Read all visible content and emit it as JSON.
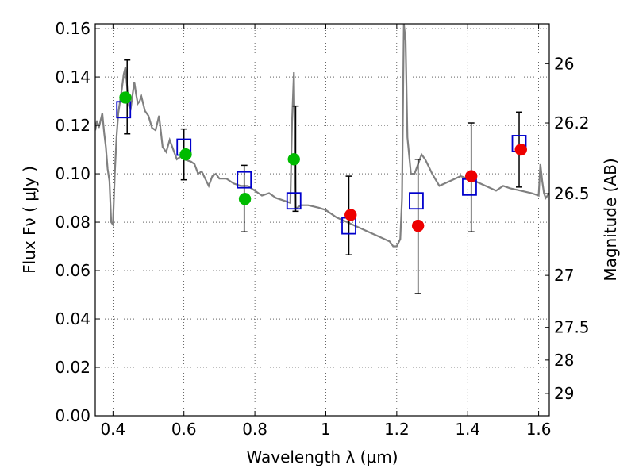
{
  "chart_data": {
    "type": "scatter",
    "title": "",
    "xlabel": "Wavelength  λ (μm)",
    "ylabel": "Flux  Fν  ( μJy )",
    "y2label": "Magnitude (AB)",
    "xlim": [
      0.35,
      1.63
    ],
    "ylim": [
      0.0,
      0.162
    ],
    "grid": true,
    "grid_style": "dotted",
    "x_ticks": [
      0.4,
      0.6,
      0.8,
      1.0,
      1.2,
      1.4,
      1.6
    ],
    "x_tick_labels": [
      "0.4",
      "0.6",
      "0.8",
      "1",
      "1.2",
      "1.4",
      "1.6"
    ],
    "y_ticks": [
      0.0,
      0.02,
      0.04,
      0.06,
      0.08,
      0.1,
      0.12,
      0.14,
      0.16
    ],
    "y_tick_labels": [
      "0.00",
      "0.02",
      "0.04",
      "0.06",
      "0.08",
      "0.10",
      "0.12",
      "0.14",
      "0.16"
    ],
    "y2_ticks": [
      {
        "label": "26",
        "flux": 0.1455
      },
      {
        "label": "26.2",
        "flux": 0.121
      },
      {
        "label": "26.5",
        "flux": 0.0918
      },
      {
        "label": "27",
        "flux": 0.058
      },
      {
        "label": "27.5",
        "flux": 0.0365
      },
      {
        "label": "28",
        "flux": 0.023
      },
      {
        "label": "29",
        "flux": 0.0092
      }
    ],
    "series": [
      {
        "kind": "line",
        "color": "#808080",
        "x": [
          0.35,
          0.355,
          0.36,
          0.37,
          0.375,
          0.38,
          0.385,
          0.39,
          0.395,
          0.4,
          0.405,
          0.41,
          0.415,
          0.42,
          0.425,
          0.43,
          0.435,
          0.44,
          0.445,
          0.45,
          0.46,
          0.465,
          0.47,
          0.475,
          0.48,
          0.49,
          0.5,
          0.51,
          0.52,
          0.53,
          0.54,
          0.55,
          0.56,
          0.57,
          0.58,
          0.59,
          0.6,
          0.62,
          0.63,
          0.64,
          0.65,
          0.66,
          0.67,
          0.68,
          0.69,
          0.7,
          0.72,
          0.74,
          0.76,
          0.78,
          0.8,
          0.82,
          0.84,
          0.86,
          0.88,
          0.9,
          0.905,
          0.91,
          0.915,
          0.92,
          0.93,
          0.95,
          0.98,
          1.0,
          1.03,
          1.06,
          1.09,
          1.12,
          1.15,
          1.18,
          1.19,
          1.2,
          1.21,
          1.215,
          1.22,
          1.225,
          1.23,
          1.24,
          1.25,
          1.26,
          1.27,
          1.28,
          1.29,
          1.3,
          1.32,
          1.35,
          1.38,
          1.4,
          1.42,
          1.45,
          1.48,
          1.5,
          1.52,
          1.55,
          1.58,
          1.6,
          1.605,
          1.61,
          1.615,
          1.62,
          1.63
        ],
        "y": [
          0.118,
          0.122,
          0.119,
          0.125,
          0.117,
          0.111,
          0.102,
          0.097,
          0.08,
          0.079,
          0.1,
          0.115,
          0.125,
          0.13,
          0.135,
          0.141,
          0.144,
          0.136,
          0.128,
          0.127,
          0.138,
          0.133,
          0.129,
          0.13,
          0.132,
          0.126,
          0.124,
          0.119,
          0.118,
          0.124,
          0.111,
          0.109,
          0.114,
          0.11,
          0.106,
          0.107,
          0.106,
          0.105,
          0.104,
          0.1,
          0.101,
          0.098,
          0.095,
          0.099,
          0.1,
          0.098,
          0.098,
          0.096,
          0.095,
          0.095,
          0.093,
          0.091,
          0.092,
          0.09,
          0.089,
          0.088,
          0.122,
          0.142,
          0.086,
          0.086,
          0.087,
          0.087,
          0.086,
          0.085,
          0.082,
          0.08,
          0.078,
          0.076,
          0.074,
          0.072,
          0.07,
          0.07,
          0.073,
          0.09,
          0.162,
          0.155,
          0.115,
          0.1,
          0.1,
          0.104,
          0.108,
          0.106,
          0.103,
          0.1,
          0.095,
          0.097,
          0.099,
          0.098,
          0.097,
          0.095,
          0.093,
          0.095,
          0.094,
          0.093,
          0.092,
          0.091,
          0.104,
          0.097,
          0.092,
          0.09,
          0.092
        ]
      },
      {
        "name": "",
        "kind": "open-square",
        "color": "#0000cc",
        "x": [
          0.43,
          0.6,
          0.77,
          0.91,
          1.065,
          1.255,
          1.405,
          1.545
        ],
        "y": [
          0.1265,
          0.111,
          0.0975,
          0.0888,
          0.0785,
          0.0888,
          0.0945,
          0.1125
        ]
      },
      {
        "name": "",
        "kind": "filled-circle",
        "color": "#00bb00",
        "x": [
          0.435,
          0.605,
          0.772,
          0.91
        ],
        "y": [
          0.1315,
          0.108,
          0.0896,
          0.106
        ]
      },
      {
        "name": "",
        "kind": "filled-circle",
        "color": "#ee0000",
        "x": [
          1.07,
          1.26,
          1.41,
          1.55
        ],
        "y": [
          0.083,
          0.0785,
          0.099,
          0.11
        ]
      }
    ],
    "error_bars": {
      "color": "#000000",
      "x": [
        0.44,
        0.6,
        0.77,
        0.915,
        1.065,
        1.26,
        1.41,
        1.545
      ],
      "y": [
        0.1315,
        0.108,
        0.0896,
        0.106,
        0.083,
        0.0785,
        0.099,
        0.11
      ],
      "low": [
        0.1165,
        0.0975,
        0.076,
        0.0845,
        0.0665,
        0.0505,
        0.076,
        0.0945
      ],
      "high": [
        0.147,
        0.1185,
        0.1035,
        0.128,
        0.099,
        0.106,
        0.121,
        0.1255
      ]
    }
  }
}
